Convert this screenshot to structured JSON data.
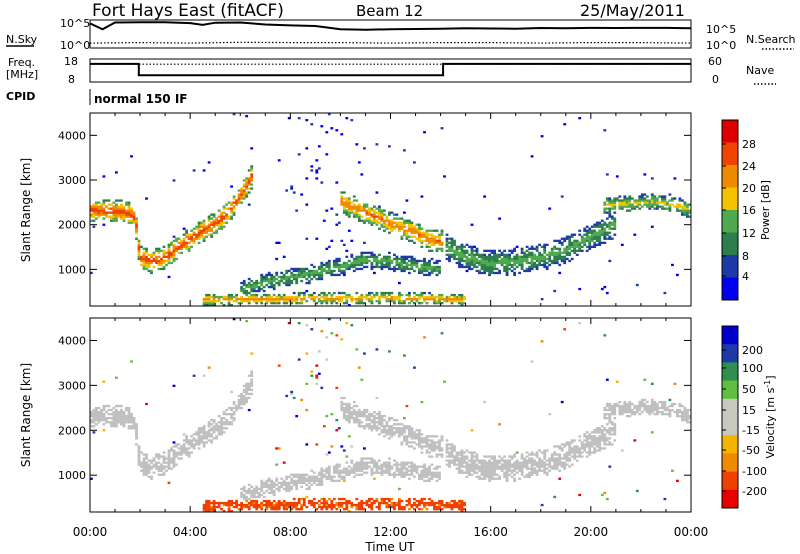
{
  "header": {
    "station": "Fort Hays East (fitACF)",
    "beam": "Beam 12",
    "date": "25/May/2011"
  },
  "panels": {
    "nsky": {
      "left_label": "N.Sky",
      "right_label": "N.Search",
      "left_ticks": [
        "10^5",
        "10^0"
      ],
      "right_ticks": [
        "10^5",
        "10^0"
      ]
    },
    "freq": {
      "left_label_1": "Freq.",
      "left_label_2": "[MHz]",
      "right_label": "Nave",
      "left_ticks": [
        "18",
        "8"
      ],
      "right_ticks": [
        "60",
        "0"
      ]
    },
    "cpid": {
      "label": "CPID",
      "value": "normal 150 IF"
    }
  },
  "colors": {
    "power": [
      "#0000ee",
      "#1d3aa8",
      "#2e7d4f",
      "#4faa4f",
      "#f5c200",
      "#f08a00",
      "#ee4400",
      "#dd0000"
    ],
    "velocity": [
      "#e60000",
      "#f04000",
      "#f08a00",
      "#f5b400",
      "#c8c8c0",
      "#c8c8c0",
      "#5fc040",
      "#2e8f4f",
      "#1d3aa8",
      "#0000cc"
    ],
    "ground_scatter": "#c0c0c0"
  },
  "chart_data": [
    {
      "type": "line",
      "name": "sky-and-search-noise",
      "x_unit": "hours UT",
      "y_scale": "log",
      "ylim": [
        1,
        100000
      ],
      "series": [
        {
          "name": "N.Sky",
          "style": "solid",
          "x": [
            0,
            0.5,
            1,
            2,
            3,
            4,
            4.5,
            5,
            6,
            7,
            8,
            9,
            10,
            11,
            12,
            13,
            14,
            15,
            16,
            17,
            18,
            19,
            20,
            21,
            22,
            23,
            24
          ],
          "y": [
            50000,
            3000,
            80000,
            90000,
            85000,
            60000,
            25000,
            70000,
            80000,
            30000,
            20000,
            15000,
            3000,
            2500,
            3000,
            3500,
            4000,
            5000,
            4500,
            4000,
            5500,
            5000,
            6000,
            5500,
            6000,
            6000,
            5000
          ]
        },
        {
          "name": "N.Search",
          "style": "dotted",
          "x": [
            0,
            2,
            4,
            6,
            8,
            10,
            12,
            14,
            16,
            18,
            20,
            22,
            24
          ],
          "y": [
            4,
            5,
            4,
            6,
            5,
            5,
            4,
            5,
            5,
            4,
            5,
            5,
            4
          ]
        }
      ]
    },
    {
      "type": "line",
      "name": "frequency-and-nave",
      "x_unit": "hours UT",
      "series": [
        {
          "name": "Freq. [MHz]",
          "style": "solid",
          "ylim": [
            8,
            18
          ],
          "x": [
            0,
            1.95,
            1.95,
            14.1,
            14.1,
            24
          ],
          "y": [
            16.5,
            16.5,
            10.5,
            10.5,
            16.5,
            16.5
          ]
        },
        {
          "name": "Nave",
          "style": "dotted",
          "ylim": [
            0,
            60
          ],
          "x": [
            0,
            24
          ],
          "y": [
            50,
            50
          ]
        }
      ]
    },
    {
      "type": "heatmap",
      "name": "power",
      "title": "Power [dB]",
      "xlabel": "",
      "ylabel": "Slant Range [km]",
      "xlim": [
        0,
        24
      ],
      "ylim": [
        180,
        4500
      ],
      "x_ticks": [
        "00:00",
        "04:00",
        "08:00",
        "12:00",
        "16:00",
        "20:00",
        "00:00"
      ],
      "y_ticks": [
        1000,
        2000,
        3000,
        4000
      ],
      "colorbar": {
        "label": "Power [dB]",
        "ticks": [
          4,
          8,
          12,
          16,
          20,
          24,
          28
        ],
        "range": [
          0,
          32
        ]
      },
      "features": [
        {
          "kind": "band",
          "t": [
            0.0,
            1.0,
            1.5,
            1.8,
            2.0,
            2.5,
            3.0,
            3.5,
            4.0,
            4.5,
            5.0,
            5.5,
            6.0,
            6.5
          ],
          "r": [
            2300,
            2280,
            2250,
            2150,
            1250,
            1150,
            1250,
            1450,
            1650,
            1850,
            2000,
            2250,
            2600,
            3100
          ],
          "thickness": 260,
          "peak": 27
        },
        {
          "kind": "band",
          "t": [
            10.0,
            10.8,
            11.5,
            12.0,
            12.5,
            13.0,
            13.5,
            14.1
          ],
          "r": [
            2500,
            2300,
            2150,
            2000,
            1900,
            1800,
            1650,
            1600
          ],
          "thickness": 260,
          "peak": 24
        },
        {
          "kind": "band",
          "t": [
            14.2,
            15.0,
            16.0,
            17.0,
            18.0,
            19.0,
            20.0,
            21.0
          ],
          "r": [
            1500,
            1250,
            1100,
            1150,
            1250,
            1400,
            1700,
            2000
          ],
          "thickness": 300,
          "peak": 14
        },
        {
          "kind": "band",
          "t": [
            6.0,
            7.0,
            8.0,
            9.0,
            10.0,
            11.0,
            12.0,
            13.0,
            14.0
          ],
          "r": [
            500,
            700,
            800,
            900,
            1050,
            1200,
            1150,
            1050,
            1000
          ],
          "thickness": 200,
          "peak": 14
        },
        {
          "kind": "band",
          "t": [
            4.5,
            6.0,
            8.0,
            10.0,
            12.0,
            14.0,
            15.0
          ],
          "r": [
            300,
            310,
            320,
            330,
            330,
            320,
            300
          ],
          "thickness": 130,
          "peak": 22
        },
        {
          "kind": "band",
          "t": [
            20.5,
            21.5,
            22.5,
            23.5,
            24.0
          ],
          "r": [
            2400,
            2450,
            2500,
            2400,
            2300
          ],
          "thickness": 180,
          "peak": 18
        }
      ]
    },
    {
      "type": "heatmap",
      "name": "velocity",
      "title": "Velocity [m s^-1]",
      "xlabel": "Time UT",
      "ylabel": "Slant Range [km]",
      "xlim": [
        0,
        24
      ],
      "ylim": [
        180,
        4500
      ],
      "x_ticks": [
        "00:00",
        "04:00",
        "08:00",
        "12:00",
        "16:00",
        "20:00",
        "00:00"
      ],
      "y_ticks": [
        1000,
        2000,
        3000,
        4000
      ],
      "colorbar": {
        "label": "Velocity [m s^-1]",
        "ticks": [
          200,
          100,
          50,
          15,
          -15,
          -50,
          -100,
          -200
        ],
        "range": [
          -250,
          250
        ]
      },
      "features": [
        {
          "kind": "band",
          "t": [
            0.0,
            1.0,
            1.5,
            1.8,
            2.0,
            2.5,
            3.0,
            3.5,
            4.0,
            4.5,
            5.0,
            5.5,
            6.0,
            6.5
          ],
          "r": [
            2300,
            2280,
            2250,
            2150,
            1250,
            1150,
            1250,
            1450,
            1650,
            1850,
            2000,
            2250,
            2600,
            3100
          ],
          "thickness": 260,
          "v": 0
        },
        {
          "kind": "band",
          "t": [
            10.0,
            10.8,
            11.5,
            12.0,
            12.5,
            13.0,
            13.5,
            14.1
          ],
          "r": [
            2500,
            2300,
            2150,
            2000,
            1900,
            1800,
            1650,
            1600
          ],
          "thickness": 260,
          "v": 0
        },
        {
          "kind": "band",
          "t": [
            14.2,
            15.0,
            16.0,
            17.0,
            18.0,
            19.0,
            20.0,
            21.0
          ],
          "r": [
            1500,
            1250,
            1100,
            1150,
            1250,
            1400,
            1700,
            2000
          ],
          "thickness": 300,
          "v": 0
        },
        {
          "kind": "band",
          "t": [
            6.0,
            7.0,
            8.0,
            9.0,
            10.0,
            11.0,
            12.0,
            13.0,
            14.0
          ],
          "r": [
            500,
            700,
            800,
            900,
            1050,
            1200,
            1150,
            1050,
            1000
          ],
          "thickness": 200,
          "v": 0
        },
        {
          "kind": "band",
          "t": [
            4.5,
            6.0,
            8.0,
            10.0,
            12.0,
            14.0,
            15.0
          ],
          "r": [
            300,
            310,
            320,
            330,
            330,
            320,
            300
          ],
          "thickness": 130,
          "v": -60
        },
        {
          "kind": "band",
          "t": [
            20.5,
            21.5,
            22.5,
            23.5,
            24.0
          ],
          "r": [
            2400,
            2450,
            2500,
            2400,
            2300
          ],
          "thickness": 180,
          "v": 0
        }
      ]
    }
  ]
}
